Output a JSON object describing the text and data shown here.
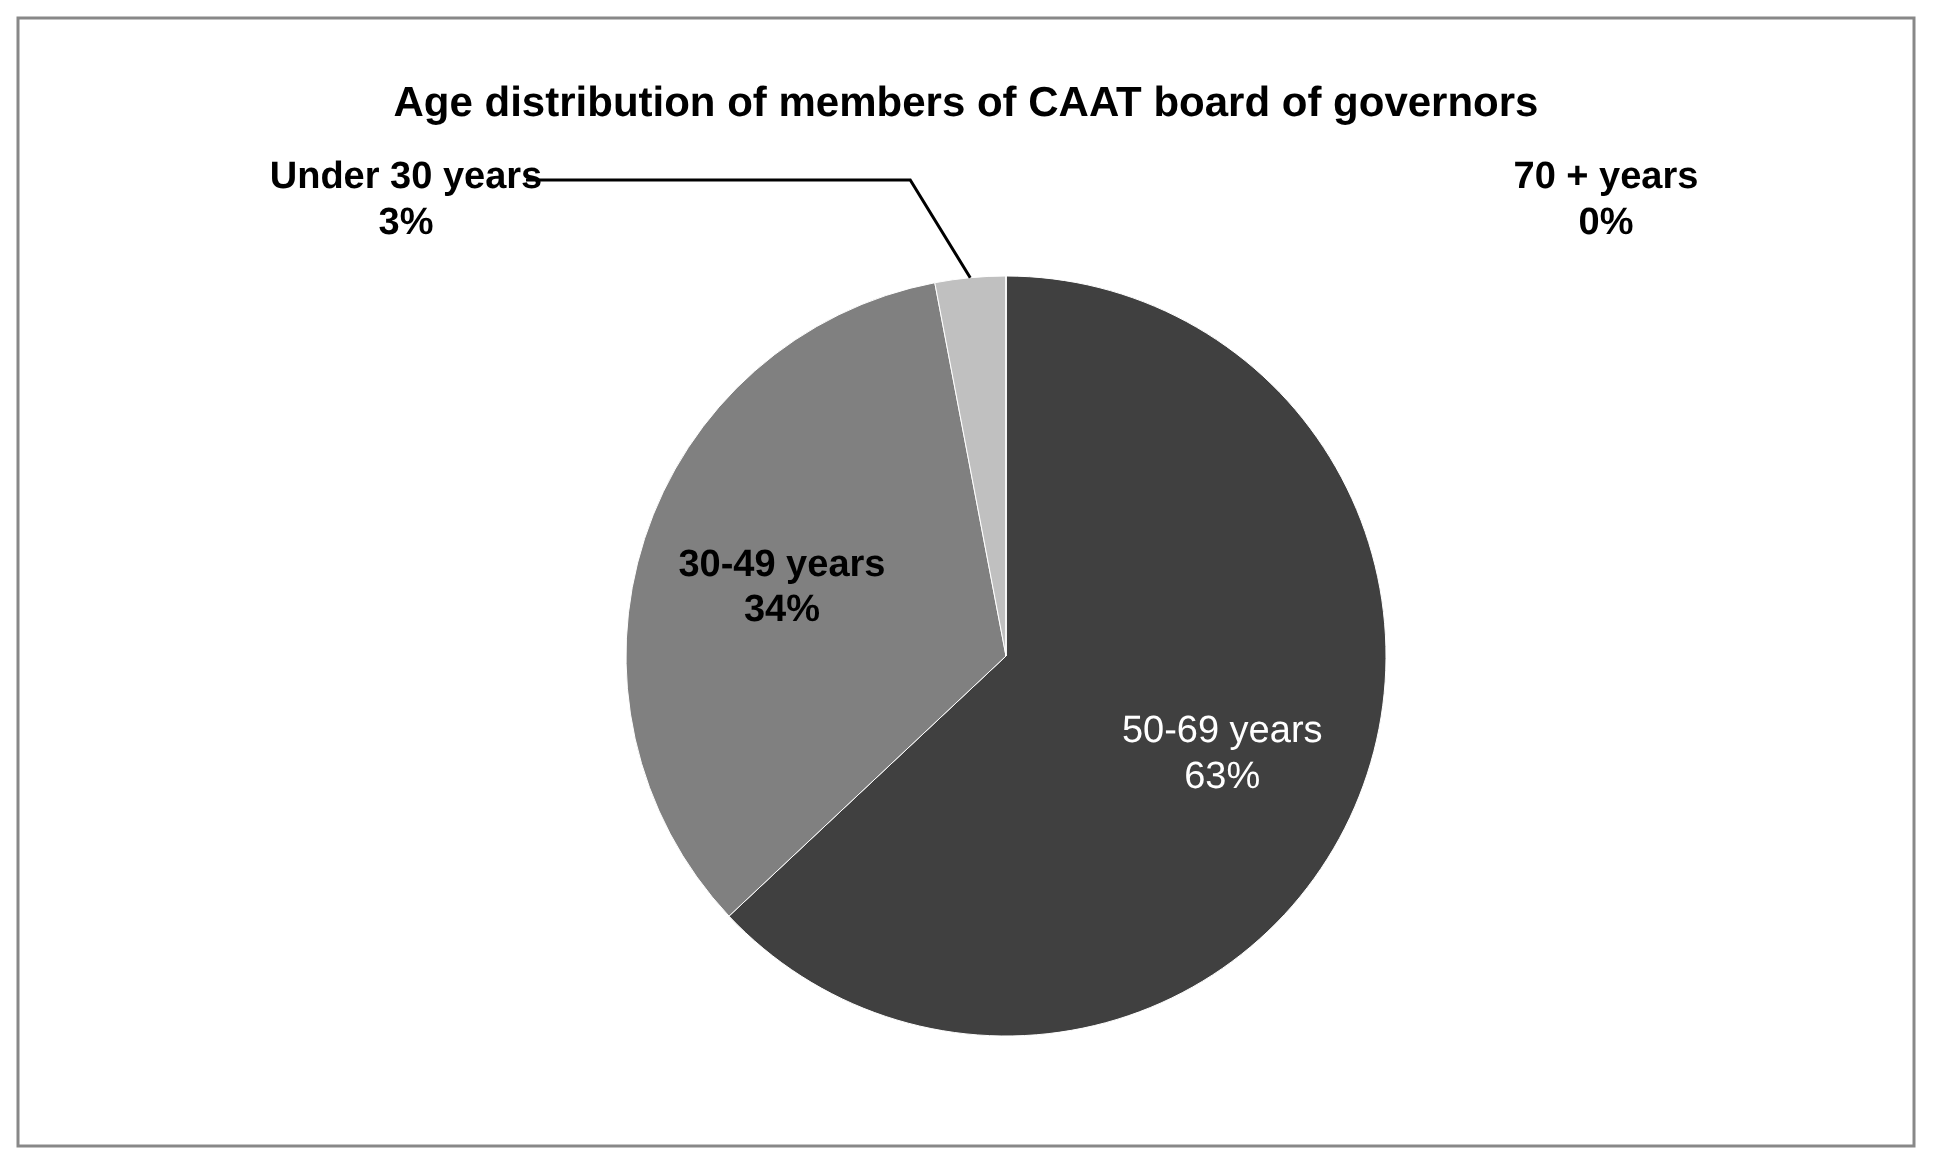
{
  "chart_data": {
    "type": "pie",
    "title": "Age distribution of members of CAAT board of governors",
    "categories": [
      "50-69 years",
      "30-49 years",
      "Under 30 years",
      "70 + years"
    ],
    "values": [
      63,
      34,
      3,
      0
    ],
    "value_labels": [
      "63%",
      "34%",
      "3%",
      "0%"
    ],
    "colors": [
      "#404040",
      "#808080",
      "#c0c0c0",
      "#e6e6e6"
    ]
  }
}
